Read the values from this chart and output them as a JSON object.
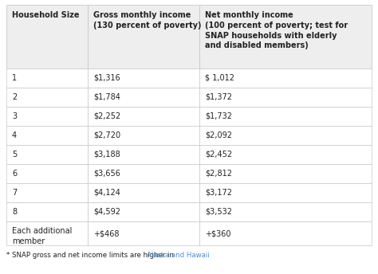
{
  "col_headers": [
    "Household Size",
    "Gross monthly income\n(130 percent of poverty)",
    "Net monthly income\n(100 percent of poverty; test for\nSNAP households with elderly\nand disabled members)"
  ],
  "rows": [
    [
      "1",
      "$1,316",
      "$ 1,012"
    ],
    [
      "2",
      "$1,784",
      "$1,372"
    ],
    [
      "3",
      "$2,252",
      "$1,732"
    ],
    [
      "4",
      "$2,720",
      "$2,092"
    ],
    [
      "5",
      "$3,188",
      "$2,452"
    ],
    [
      "6",
      "$3,656",
      "$2,812"
    ],
    [
      "7",
      "$4,124",
      "$3,172"
    ],
    [
      "8",
      "$4,592",
      "$3,532"
    ],
    [
      "Each additional\nmember",
      "+$468",
      "+$360"
    ]
  ],
  "footnote_plain": "* SNAP gross and net income limits are higher in ",
  "footnote_link": "Alaska and Hawaii",
  "footnote_end": ".",
  "header_bg": "#eeeeee",
  "row_bg": "#ffffff",
  "border_color": "#c8c8c8",
  "text_color": "#222222",
  "link_color": "#4a8fd4",
  "header_fontsize": 7.0,
  "cell_fontsize": 7.0,
  "footnote_fontsize": 6.2,
  "fig_width": 4.74,
  "fig_height": 3.44,
  "dpi": 100
}
